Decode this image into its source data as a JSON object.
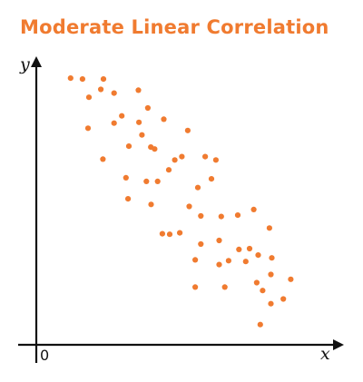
{
  "colors": {
    "accent": "#f07b30",
    "axis": "#111111",
    "background": "#ffffff"
  },
  "chart_data": {
    "type": "scatter",
    "title": "Moderate Linear Correlation",
    "xlabel": "x",
    "ylabel": "y",
    "origin_label": "0",
    "xlim": [
      0,
      100
    ],
    "ylim": [
      0,
      100
    ],
    "grid": false,
    "legend": "none",
    "points": [
      {
        "x": 11.6,
        "y": 94.8
      },
      {
        "x": 15.6,
        "y": 94.5
      },
      {
        "x": 22.7,
        "y": 94.5
      },
      {
        "x": 21.8,
        "y": 90.8
      },
      {
        "x": 34.5,
        "y": 90.5
      },
      {
        "x": 17.8,
        "y": 88.0
      },
      {
        "x": 26.3,
        "y": 89.5
      },
      {
        "x": 37.7,
        "y": 84.2
      },
      {
        "x": 43.1,
        "y": 80.2
      },
      {
        "x": 28.9,
        "y": 81.4
      },
      {
        "x": 26.3,
        "y": 78.8
      },
      {
        "x": 34.7,
        "y": 79.1
      },
      {
        "x": 35.7,
        "y": 74.6
      },
      {
        "x": 17.5,
        "y": 77.0
      },
      {
        "x": 51.2,
        "y": 76.2
      },
      {
        "x": 31.3,
        "y": 70.6
      },
      {
        "x": 38.7,
        "y": 70.3
      },
      {
        "x": 40.0,
        "y": 69.6
      },
      {
        "x": 22.5,
        "y": 66.0
      },
      {
        "x": 46.8,
        "y": 65.7
      },
      {
        "x": 49.2,
        "y": 66.9
      },
      {
        "x": 57.1,
        "y": 66.9
      },
      {
        "x": 60.7,
        "y": 65.7
      },
      {
        "x": 44.8,
        "y": 62.2
      },
      {
        "x": 30.3,
        "y": 59.4
      },
      {
        "x": 37.2,
        "y": 58.1
      },
      {
        "x": 41.0,
        "y": 58.1
      },
      {
        "x": 59.2,
        "y": 59.0
      },
      {
        "x": 54.6,
        "y": 55.9
      },
      {
        "x": 31.0,
        "y": 51.9
      },
      {
        "x": 38.8,
        "y": 49.9
      },
      {
        "x": 51.7,
        "y": 49.2
      },
      {
        "x": 55.6,
        "y": 45.8
      },
      {
        "x": 68.1,
        "y": 46.1
      },
      {
        "x": 62.5,
        "y": 45.6
      },
      {
        "x": 73.5,
        "y": 48.1
      },
      {
        "x": 42.6,
        "y": 39.5
      },
      {
        "x": 45.1,
        "y": 39.3
      },
      {
        "x": 48.5,
        "y": 39.8
      },
      {
        "x": 55.6,
        "y": 35.8
      },
      {
        "x": 61.8,
        "y": 37.1
      },
      {
        "x": 68.5,
        "y": 33.9
      },
      {
        "x": 78.8,
        "y": 41.5
      },
      {
        "x": 72.1,
        "y": 34.2
      },
      {
        "x": 75.0,
        "y": 31.9
      },
      {
        "x": 70.8,
        "y": 29.6
      },
      {
        "x": 53.7,
        "y": 30.2
      },
      {
        "x": 61.8,
        "y": 28.5
      },
      {
        "x": 65.0,
        "y": 29.9
      },
      {
        "x": 79.6,
        "y": 30.9
      },
      {
        "x": 79.3,
        "y": 25.0
      },
      {
        "x": 86.0,
        "y": 23.3
      },
      {
        "x": 74.5,
        "y": 22.1
      },
      {
        "x": 53.7,
        "y": 20.5
      },
      {
        "x": 63.7,
        "y": 20.5
      },
      {
        "x": 76.5,
        "y": 19.3
      },
      {
        "x": 83.5,
        "y": 16.3
      },
      {
        "x": 79.3,
        "y": 14.6
      },
      {
        "x": 75.7,
        "y": 7.2
      }
    ]
  }
}
